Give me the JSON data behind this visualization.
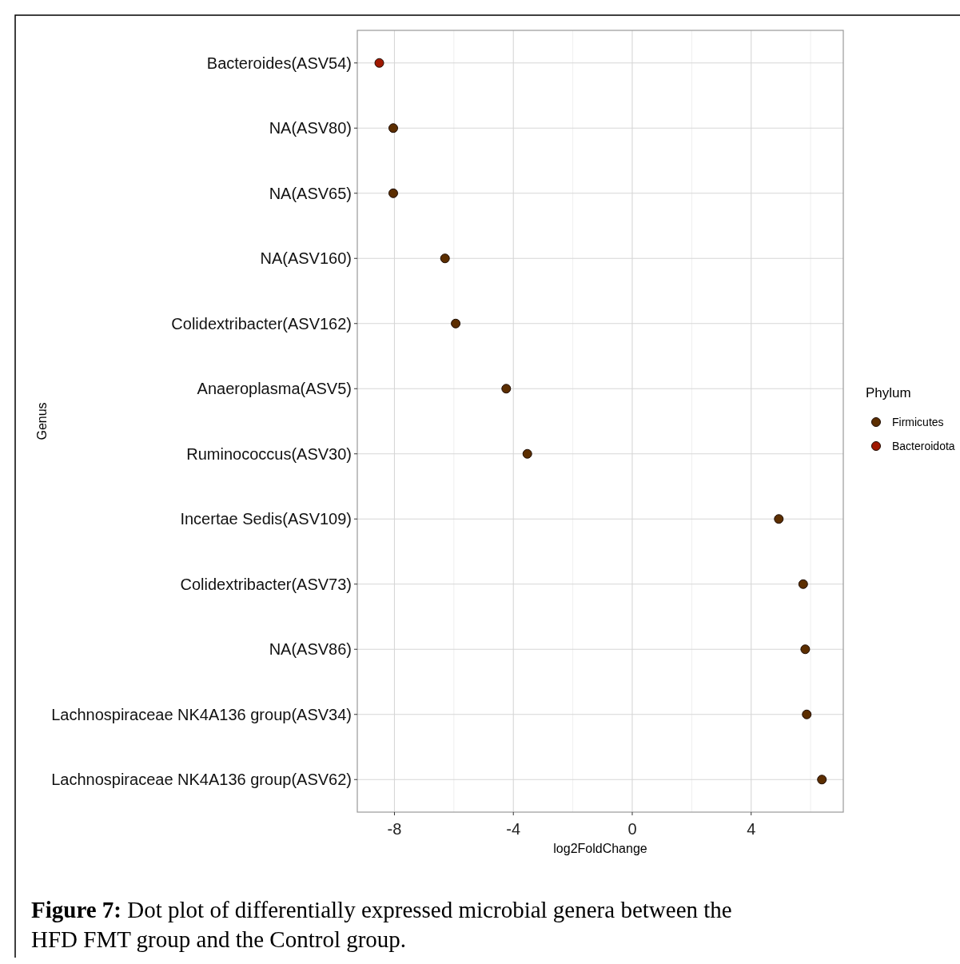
{
  "chart_data": {
    "type": "scatter",
    "orientation": "horizontal",
    "categories": [
      "Bacteroides(ASV54)",
      "NA(ASV80)",
      "NA(ASV65)",
      "NA(ASV160)",
      "Colidextribacter(ASV162)",
      "Anaeroplasma(ASV5)",
      "Ruminococcus(ASV30)",
      "Incertae Sedis(ASV109)",
      "Colidextribacter(ASV73)",
      "NA(ASV86)",
      "Lachnospiraceae NK4A136 group(ASV34)",
      "Lachnospiraceae NK4A136 group(ASV62)"
    ],
    "series": [
      {
        "name": "Firmicutes",
        "color": "#5c2e00",
        "values": [
          null,
          -8.04,
          -8.04,
          -6.3,
          -5.94,
          -4.24,
          -3.53,
          4.93,
          5.75,
          5.82,
          5.87,
          6.38
        ]
      },
      {
        "name": "Bacteroidota",
        "color": "#a01800",
        "values": [
          -8.51,
          null,
          null,
          null,
          null,
          null,
          null,
          null,
          null,
          null,
          null,
          null
        ]
      }
    ],
    "xlim": [
      -9.25,
      7.1
    ],
    "xticks": [
      -8,
      {
        "value": -6,
        "label": null
      },
      -4,
      {
        "value": -2,
        "label": null
      },
      0,
      {
        "value": 2,
        "label": null
      },
      4,
      {
        "value": 6,
        "label": null
      }
    ],
    "xlabel": "log2FoldChange",
    "ylabel": "Genus",
    "legend_title": "Phylum",
    "legend": "right",
    "grid": true,
    "marker": "circle",
    "annotations": [
      "Figure 7: Dot plot of differentially expressed microbial genera between the HFD FMT group and the Control group."
    ]
  }
}
